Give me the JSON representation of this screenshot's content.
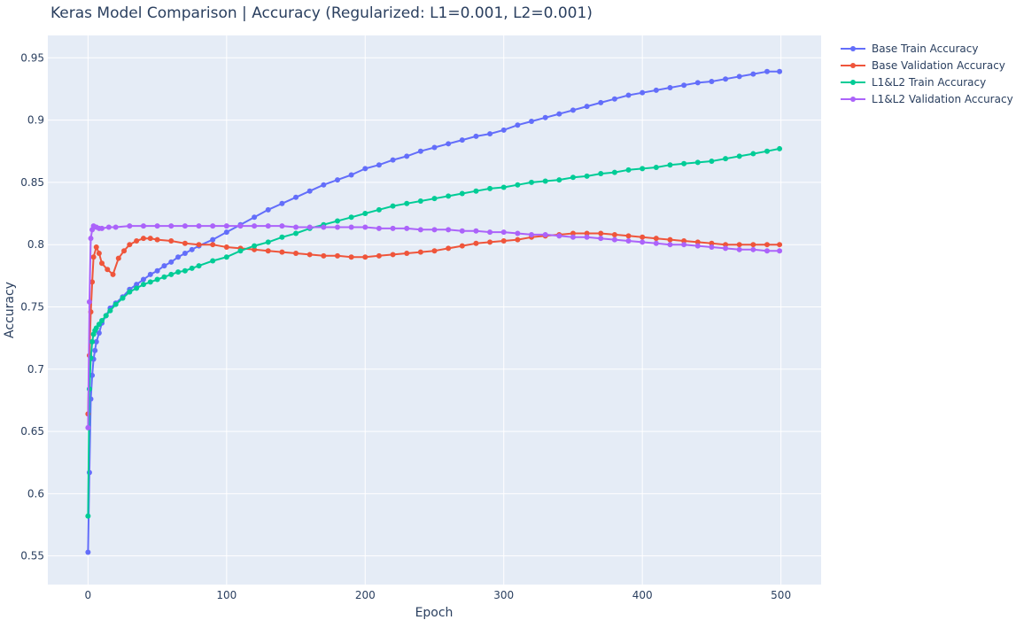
{
  "chart_data": {
    "type": "line",
    "title": "Keras Model Comparison |  Accuracy (Regularized: L1=0.001, L2=0.001)",
    "xlabel": "Epoch",
    "ylabel": "Accuracy",
    "xlim": [
      -29,
      529
    ],
    "ylim": [
      0.527,
      0.968
    ],
    "xticks": [
      0,
      100,
      200,
      300,
      400,
      500
    ],
    "xtick_labels": [
      "0",
      "100",
      "200",
      "300",
      "400",
      "500"
    ],
    "yticks": [
      0.55,
      0.6,
      0.65,
      0.7,
      0.75,
      0.8,
      0.85,
      0.9,
      0.95
    ],
    "ytick_labels": [
      "0.55",
      "0.6",
      "0.65",
      "0.7",
      "0.75",
      "0.8",
      "0.85",
      "0.9",
      "0.95"
    ],
    "grid": true,
    "legend_position": "top-right, outside plot",
    "background": "#e5ecf6",
    "series": [
      {
        "name": "Base Train Accuracy",
        "color": "#636efa",
        "x": [
          0,
          1,
          2,
          3,
          4,
          5,
          6,
          8,
          10,
          13,
          16,
          20,
          25,
          30,
          35,
          40,
          45,
          50,
          55,
          60,
          65,
          70,
          75,
          80,
          90,
          100,
          110,
          120,
          130,
          140,
          150,
          160,
          170,
          180,
          190,
          200,
          210,
          220,
          230,
          240,
          250,
          260,
          270,
          280,
          290,
          300,
          310,
          320,
          330,
          340,
          350,
          360,
          370,
          380,
          390,
          400,
          410,
          420,
          430,
          440,
          450,
          460,
          470,
          480,
          490,
          499
        ],
        "y": [
          0.553,
          0.617,
          0.676,
          0.695,
          0.708,
          0.715,
          0.722,
          0.729,
          0.737,
          0.743,
          0.749,
          0.753,
          0.758,
          0.764,
          0.768,
          0.772,
          0.776,
          0.779,
          0.783,
          0.786,
          0.79,
          0.793,
          0.796,
          0.799,
          0.804,
          0.81,
          0.816,
          0.822,
          0.828,
          0.833,
          0.838,
          0.843,
          0.848,
          0.852,
          0.856,
          0.861,
          0.864,
          0.868,
          0.871,
          0.875,
          0.878,
          0.881,
          0.884,
          0.887,
          0.889,
          0.892,
          0.896,
          0.899,
          0.902,
          0.905,
          0.908,
          0.911,
          0.914,
          0.917,
          0.92,
          0.922,
          0.924,
          0.926,
          0.928,
          0.93,
          0.931,
          0.933,
          0.935,
          0.937,
          0.939,
          0.939
        ]
      },
      {
        "name": "Base Validation Accuracy",
        "color": "#ef553b",
        "x": [
          0,
          1,
          2,
          3,
          4,
          6,
          8,
          10,
          14,
          18,
          22,
          26,
          30,
          35,
          40,
          45,
          50,
          60,
          70,
          80,
          90,
          100,
          110,
          120,
          130,
          140,
          150,
          160,
          170,
          180,
          190,
          200,
          210,
          220,
          230,
          240,
          250,
          260,
          270,
          280,
          290,
          300,
          310,
          320,
          330,
          340,
          350,
          360,
          370,
          380,
          390,
          400,
          410,
          420,
          430,
          440,
          450,
          460,
          470,
          480,
          490,
          499
        ],
        "y": [
          0.664,
          0.711,
          0.746,
          0.77,
          0.79,
          0.798,
          0.793,
          0.785,
          0.78,
          0.776,
          0.789,
          0.795,
          0.8,
          0.803,
          0.805,
          0.805,
          0.804,
          0.803,
          0.801,
          0.8,
          0.8,
          0.798,
          0.797,
          0.796,
          0.795,
          0.794,
          0.793,
          0.792,
          0.791,
          0.791,
          0.79,
          0.79,
          0.791,
          0.792,
          0.793,
          0.794,
          0.795,
          0.797,
          0.799,
          0.801,
          0.802,
          0.803,
          0.804,
          0.806,
          0.807,
          0.808,
          0.809,
          0.809,
          0.809,
          0.808,
          0.807,
          0.806,
          0.805,
          0.804,
          0.803,
          0.802,
          0.801,
          0.8,
          0.8,
          0.8,
          0.8,
          0.8
        ]
      },
      {
        "name": "L1&L2 Train Accuracy",
        "color": "#00cc96",
        "x": [
          0,
          1,
          2,
          3,
          4,
          5,
          6,
          8,
          10,
          13,
          16,
          20,
          25,
          30,
          35,
          40,
          45,
          50,
          55,
          60,
          65,
          70,
          75,
          80,
          90,
          100,
          110,
          120,
          130,
          140,
          150,
          160,
          170,
          180,
          190,
          200,
          210,
          220,
          230,
          240,
          250,
          260,
          270,
          280,
          290,
          300,
          310,
          320,
          330,
          340,
          350,
          360,
          370,
          380,
          390,
          400,
          410,
          420,
          430,
          440,
          450,
          460,
          470,
          480,
          490,
          499
        ],
        "y": [
          0.582,
          0.684,
          0.709,
          0.722,
          0.728,
          0.731,
          0.733,
          0.736,
          0.739,
          0.743,
          0.747,
          0.752,
          0.757,
          0.762,
          0.765,
          0.768,
          0.77,
          0.772,
          0.774,
          0.776,
          0.778,
          0.779,
          0.781,
          0.783,
          0.787,
          0.79,
          0.795,
          0.799,
          0.802,
          0.806,
          0.809,
          0.813,
          0.816,
          0.819,
          0.822,
          0.825,
          0.828,
          0.831,
          0.833,
          0.835,
          0.837,
          0.839,
          0.841,
          0.843,
          0.845,
          0.846,
          0.848,
          0.85,
          0.851,
          0.852,
          0.854,
          0.855,
          0.857,
          0.858,
          0.86,
          0.861,
          0.862,
          0.864,
          0.865,
          0.866,
          0.867,
          0.869,
          0.871,
          0.873,
          0.875,
          0.877
        ]
      },
      {
        "name": "L1&L2 Validation Accuracy",
        "color": "#ab63fa",
        "x": [
          0,
          1,
          2,
          3,
          4,
          6,
          8,
          10,
          15,
          20,
          30,
          40,
          50,
          60,
          70,
          80,
          90,
          100,
          110,
          120,
          130,
          140,
          150,
          160,
          170,
          180,
          190,
          200,
          210,
          220,
          230,
          240,
          250,
          260,
          270,
          280,
          290,
          300,
          310,
          320,
          330,
          340,
          350,
          360,
          370,
          380,
          390,
          400,
          410,
          420,
          430,
          440,
          450,
          460,
          470,
          480,
          490,
          499
        ],
        "y": [
          0.653,
          0.754,
          0.805,
          0.812,
          0.815,
          0.814,
          0.813,
          0.813,
          0.814,
          0.814,
          0.815,
          0.815,
          0.815,
          0.815,
          0.815,
          0.815,
          0.815,
          0.815,
          0.815,
          0.815,
          0.815,
          0.815,
          0.814,
          0.814,
          0.814,
          0.814,
          0.814,
          0.814,
          0.813,
          0.813,
          0.813,
          0.812,
          0.812,
          0.812,
          0.811,
          0.811,
          0.81,
          0.81,
          0.809,
          0.808,
          0.808,
          0.807,
          0.806,
          0.806,
          0.805,
          0.804,
          0.803,
          0.802,
          0.801,
          0.8,
          0.8,
          0.799,
          0.798,
          0.797,
          0.796,
          0.796,
          0.795,
          0.795
        ]
      }
    ]
  }
}
